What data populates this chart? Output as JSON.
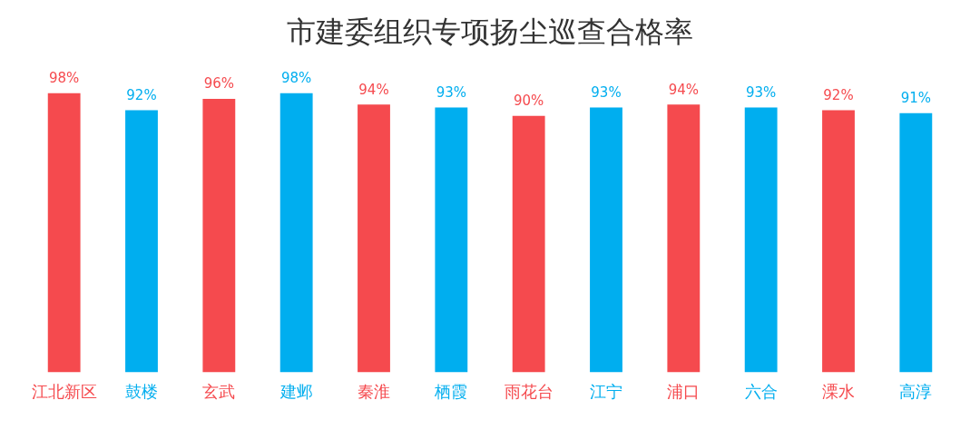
{
  "chart_data": {
    "type": "bar",
    "title": "市建委组织专项扬尘巡查合格率",
    "categories": [
      "江北新区",
      "鼓楼",
      "玄武",
      "建邺",
      "秦淮",
      "栖霞",
      "雨花台",
      "江宁",
      "浦口",
      "六合",
      "溧水",
      "高淳"
    ],
    "values": [
      98,
      92,
      96,
      98,
      94,
      93,
      90,
      93,
      94,
      93,
      92,
      91
    ],
    "colors": [
      "#f54a4e",
      "#00aeef",
      "#f54a4e",
      "#00aeef",
      "#f54a4e",
      "#00aeef",
      "#f54a4e",
      "#00aeef",
      "#f54a4e",
      "#00aeef",
      "#f54a4e",
      "#00aeef"
    ],
    "value_labels": [
      "98%",
      "92%",
      "96%",
      "98%",
      "94%",
      "93%",
      "90%",
      "93%",
      "94%",
      "93%",
      "92%",
      "91%"
    ],
    "grid": false,
    "legend": false
  }
}
